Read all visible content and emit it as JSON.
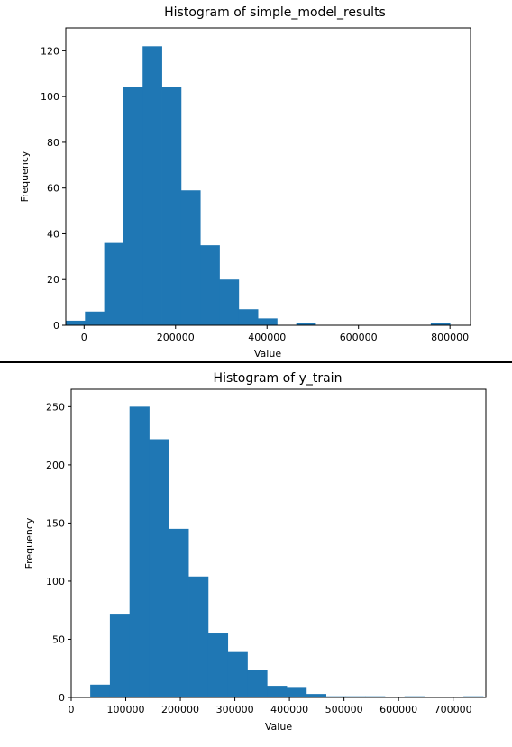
{
  "chart_data": [
    {
      "type": "bar",
      "title": "Histogram of simple_model_results",
      "xlabel": "Value",
      "ylabel": "Frequency",
      "xlim": [
        -40000,
        845000
      ],
      "ylim": [
        0,
        130
      ],
      "xticks": [
        0,
        200000,
        400000,
        600000,
        800000
      ],
      "yticks": [
        0,
        20,
        40,
        60,
        80,
        100,
        120
      ],
      "bin_edges": [
        -40000,
        2000,
        44000,
        86000,
        128000,
        170000,
        212000,
        254000,
        296000,
        338000,
        380000,
        422000,
        464000,
        506000,
        548000,
        590000,
        632000,
        674000,
        716000,
        758000,
        800000
      ],
      "counts": [
        2,
        6,
        36,
        104,
        122,
        104,
        59,
        35,
        20,
        7,
        3,
        0,
        1,
        0,
        0,
        0,
        0,
        0,
        0,
        1
      ],
      "grid": false,
      "color": "#1f77b4"
    },
    {
      "type": "bar",
      "title": "Histogram of y_train",
      "xlabel": "Value",
      "ylabel": "Frequency",
      "xlim": [
        0,
        760000
      ],
      "ylim": [
        0,
        265
      ],
      "xticks": [
        0,
        100000,
        200000,
        300000,
        400000,
        500000,
        600000,
        700000
      ],
      "yticks": [
        0,
        50,
        100,
        150,
        200,
        250
      ],
      "bin_edges": [
        34900,
        70900,
        106900,
        142900,
        178900,
        214900,
        250900,
        286900,
        322900,
        358900,
        394900,
        430900,
        466900,
        502900,
        538900,
        574900,
        610900,
        646900,
        682900,
        718900,
        755000
      ],
      "counts": [
        11,
        72,
        250,
        222,
        145,
        104,
        55,
        39,
        24,
        10,
        9,
        3,
        1,
        1,
        1,
        0,
        1,
        0,
        0,
        1
      ],
      "grid": false,
      "color": "#1f77b4"
    }
  ]
}
